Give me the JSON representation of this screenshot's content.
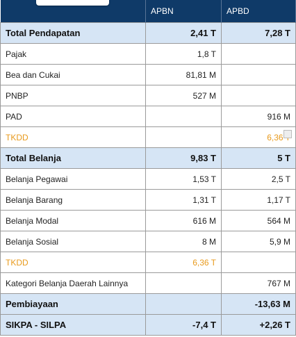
{
  "header": {
    "columns": [
      "APBN",
      "APBD"
    ]
  },
  "table": {
    "rows": [
      [
        "Total Pendapatan",
        "2,41 T",
        "7,28 T"
      ],
      [
        "Pajak",
        "1,8 T",
        null
      ],
      [
        "Bea dan Cukai",
        "81,81 M",
        null
      ],
      [
        "PNBP",
        "527 M",
        null
      ],
      [
        "PAD",
        null,
        "916 M"
      ],
      [
        "TKDD",
        null,
        "6,36 T"
      ],
      [
        "Total Belanja",
        "9,83 T",
        "5 T"
      ],
      [
        "Belanja Pegawai",
        "1,53 T",
        "2,5 T"
      ],
      [
        "Belanja Barang",
        "1,31 T",
        "1,17 T"
      ],
      [
        "Belanja Modal",
        "616 M",
        "564 M"
      ],
      [
        "Belanja Sosial",
        "8 M",
        "5,9 M"
      ],
      [
        "TKDD",
        "6,36 T",
        null
      ],
      [
        "Kategori Belanja Daerah Lainnya",
        null,
        "767 M"
      ],
      [
        "Pembiayaan",
        null,
        "-13,63 M"
      ],
      [
        "SIKPA - SILPA",
        "-7,4 T",
        "+2,26 T"
      ]
    ]
  }
}
